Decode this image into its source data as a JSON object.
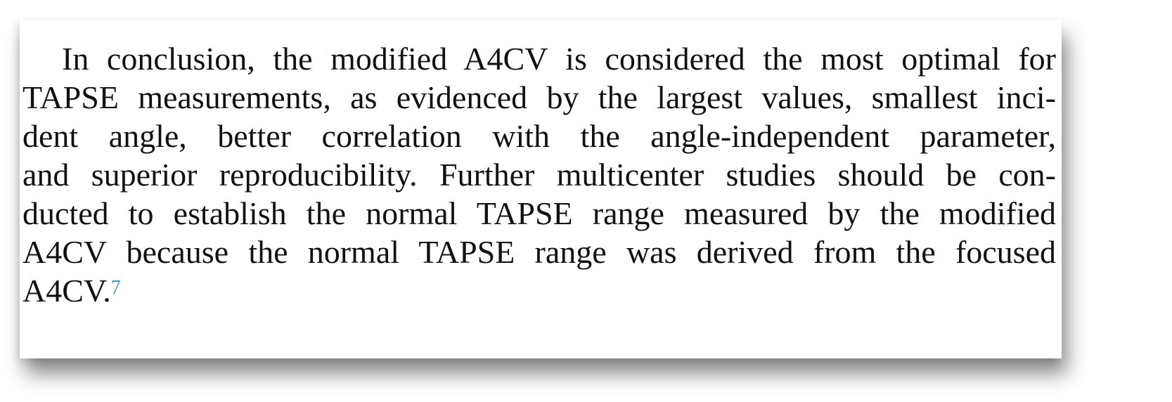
{
  "paragraph": {
    "lines": [
      "In conclusion, the modified A4CV is considered the most optimal for",
      "TAPSE measurements, as evidenced by the largest values, smallest inci-",
      "dent angle, better correlation with the angle-independent parameter,",
      "and superior reproducibility. Further multicenter studies should be con-",
      "ducted to establish the normal TAPSE range measured by the modified",
      "A4CV because the normal TAPSE range was derived from the focused",
      "A4CV."
    ],
    "reference": "7",
    "reference_color": "#3a9ad0"
  }
}
